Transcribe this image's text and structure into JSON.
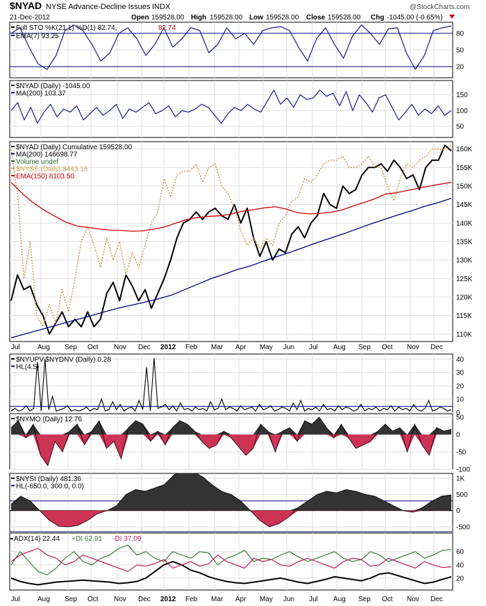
{
  "header": {
    "symbol": "$NYAD",
    "name": "NYSE Advance-Decline Issues",
    "exchange": "INDX",
    "date": "21-Dec-2012",
    "open_label": "Open",
    "open": "159528.00",
    "high_label": "High",
    "high": "159528.00",
    "low_label": "Low",
    "low": "159528.00",
    "close_label": "Close",
    "close": "159528.00",
    "chg_label": "Chg",
    "chg": "-1045.00 (-0.65%)",
    "watermark": "@StockCharts.com",
    "down_color": "#cc0000"
  },
  "xaxis": {
    "labels": [
      "Jul",
      "Aug",
      "Sep",
      "Oct",
      "Nov",
      "Dec",
      "2012",
      "Feb",
      "Mar",
      "Apr",
      "May",
      "Jun",
      "Jul",
      "Aug",
      "Sep",
      "Oct",
      "Nov",
      "Dec"
    ]
  },
  "chart_data": [
    {
      "type": "line",
      "title": "Full STO %K(21,1) %D(1) 82.74, 82.74",
      "legend": [
        {
          "label": "Full STO %K(21,1) %D(1) 82.74,",
          "color": "#000000"
        },
        {
          "label": "82.74",
          "color": "#cc0000"
        },
        {
          "label": "EMA(7) 93.25",
          "color": "#000080"
        }
      ],
      "yticks": [
        20,
        50,
        80
      ],
      "ylim": [
        0,
        100
      ],
      "reference_lines": [
        20,
        80
      ],
      "series": [
        {
          "name": "EMA(7) 93.25",
          "color": "#1a1a8c",
          "values": [
            80,
            90,
            55,
            25,
            15,
            40,
            85,
            95,
            85,
            60,
            30,
            45,
            80,
            90,
            70,
            40,
            60,
            90,
            55,
            70,
            90,
            85,
            45,
            60,
            90,
            70,
            80,
            60,
            85,
            90,
            92,
            85,
            55,
            30,
            70,
            90,
            60,
            35,
            75,
            95,
            80,
            60,
            88,
            90,
            45,
            15,
            40,
            85,
            90,
            93
          ]
        }
      ]
    },
    {
      "type": "line",
      "title": "$NYAD (Daily) -1045.00",
      "legend": [
        {
          "label": "$NYAD (Daily) -1045.00",
          "color": "#000000"
        },
        {
          "label": "MA(200) 103.37",
          "color": "#000080"
        }
      ],
      "yticks": [
        50,
        100,
        150
      ],
      "ylim": [
        15,
        195
      ],
      "series": [
        {
          "name": "$NYAD (Daily) -1045.00",
          "color": "#1a1a8c",
          "values": [
            100,
            125,
            70,
            110,
            60,
            95,
            120,
            80,
            105,
            95,
            115,
            70,
            90,
            110,
            85,
            100,
            120,
            75,
            105,
            95,
            110,
            125,
            90,
            100,
            115,
            80,
            100,
            95,
            105,
            120,
            110,
            85,
            60,
            90,
            110,
            100,
            120,
            105,
            95,
            130,
            165,
            120,
            140,
            110,
            150,
            135,
            140,
            165,
            145,
            155,
            115,
            160,
            100,
            150,
            125,
            95,
            140,
            150,
            110,
            70,
            95,
            120,
            85,
            105,
            90,
            115,
            85,
            100
          ]
        }
      ]
    },
    {
      "type": "line",
      "title": "$NYAD (Daily) Cumulative 159528.00",
      "legend": [
        {
          "label": "$NYAD (Daily) Cumulative 159528.00",
          "color": "#000000"
        },
        {
          "label": "MA(200) 146698.77",
          "color": "#000080"
        },
        {
          "label": "Volume undef",
          "color": "#2e6b2e"
        },
        {
          "label": "$NYSE (Daily) 8443.16",
          "color": "#c8a050"
        },
        {
          "label": "EMA(150) 8103.50",
          "color": "#cc0000"
        }
      ],
      "yticks": [
        110000,
        115000,
        120000,
        125000,
        130000,
        135000,
        140000,
        145000,
        150000,
        155000,
        160000
      ],
      "ylim": [
        108000,
        162000
      ],
      "series": [
        {
          "name": "$NYAD (Daily) Cumulative 159528.00",
          "color": "#000000",
          "width": 2,
          "values": [
            119000,
            126000,
            122000,
            123000,
            118000,
            115000,
            110000,
            113000,
            116000,
            112000,
            114000,
            112000,
            116000,
            112000,
            114000,
            121000,
            124000,
            119000,
            126000,
            123000,
            119000,
            122000,
            117000,
            121000,
            125000,
            130000,
            136000,
            140000,
            141000,
            143000,
            141000,
            143000,
            144000,
            142000,
            141000,
            145000,
            140000,
            144000,
            136000,
            131000,
            135000,
            130000,
            133000,
            132000,
            137000,
            139000,
            136000,
            140000,
            142000,
            148000,
            145000,
            144000,
            150000,
            148000,
            149000,
            153000,
            155000,
            155000,
            156000,
            154000,
            157000,
            155000,
            152000,
            153000,
            149000,
            155000,
            157000,
            157000,
            161000,
            159500
          ]
        },
        {
          "name": "$NYSE (Daily) 8443.16",
          "color": "#c8a050",
          "width": 1.6,
          "dashed": true,
          "values": [
            160000,
            148000,
            125000,
            135000,
            115000,
            112000,
            118000,
            113000,
            122000,
            116000,
            125000,
            135000,
            139000,
            134000,
            128000,
            136000,
            130000,
            135000,
            126000,
            132000,
            128000,
            134000,
            140000,
            143000,
            152000,
            147000,
            153000,
            154000,
            154000,
            156000,
            151000,
            155000,
            156000,
            150000,
            148000,
            144000,
            138000,
            134000,
            136000,
            133000,
            136000,
            134000,
            140000,
            142000,
            146000,
            147000,
            152000,
            151000,
            153000,
            156000,
            157000,
            157000,
            158000,
            155000,
            155000,
            156000,
            158000,
            155000,
            155000,
            150000,
            146000,
            152000,
            156000,
            155000,
            157000,
            158000,
            160000,
            160000,
            160000,
            161000
          ]
        },
        {
          "name": "EMA(150) 8103.50",
          "color": "#cc0000",
          "width": 1.3,
          "values": [
            151000,
            148000,
            145500,
            143500,
            141800,
            140200,
            139200,
            138800,
            138400,
            138100,
            138000,
            137800,
            137900,
            138400,
            139000,
            140000,
            141000,
            141500,
            141800,
            142000,
            142400,
            143200,
            143600,
            144100,
            144400,
            143800,
            142800,
            142500,
            142600,
            142900,
            143500,
            144500,
            145500,
            146500,
            147800,
            148200,
            148800,
            149400,
            150000,
            150500,
            151000
          ]
        },
        {
          "name": "MA(200) 146698.77",
          "color": "#000080",
          "width": 1.3,
          "values": [
            109000,
            110000,
            111000,
            112000,
            113000,
            114000,
            115000,
            116000,
            117000,
            117800,
            118600,
            119500,
            120500,
            122000,
            123500,
            125000,
            126200,
            127500,
            128500,
            129800,
            131000,
            132200,
            133500,
            134800,
            136000,
            137200,
            138500,
            139800,
            141000,
            142200,
            143300,
            144500,
            145500,
            146700
          ]
        }
      ]
    },
    {
      "type": "bar",
      "title": "$NYUPV:$NYDNV (Daily) 0.28",
      "legend": [
        {
          "label": "$NYUPV:$NYDNV (Daily) 0.28",
          "color": "#000000"
        },
        {
          "label": "HL(4.5)",
          "color": "#000080"
        }
      ],
      "yticks": [
        0,
        10,
        20,
        30,
        40
      ],
      "ylim": [
        0,
        44
      ],
      "reference_lines": [
        4.5
      ],
      "values": [
        1,
        3,
        1,
        2,
        5,
        1,
        3,
        38,
        1,
        40,
        2,
        12,
        1,
        2,
        3,
        5,
        1,
        2,
        1,
        2,
        4,
        1,
        3,
        2,
        10,
        1,
        2,
        8,
        2,
        6,
        1,
        3,
        4,
        1,
        9,
        2,
        34,
        1,
        41,
        3,
        4,
        6,
        2,
        5,
        1,
        7,
        2,
        3,
        1,
        4,
        2,
        3,
        1,
        8,
        2,
        3,
        10,
        2,
        4,
        3,
        1,
        5,
        2,
        3,
        4,
        1,
        6,
        2,
        3,
        5,
        1,
        2,
        4,
        3,
        1,
        7,
        2,
        9,
        1,
        3,
        2,
        4,
        1,
        6,
        2,
        3,
        1,
        5,
        2,
        4,
        3,
        1,
        2,
        6,
        1,
        3,
        2,
        4,
        1,
        3,
        2,
        5,
        1,
        4,
        2,
        3,
        1,
        6,
        2,
        1,
        3,
        9,
        1,
        2,
        4,
        3,
        1,
        2
      ]
    },
    {
      "type": "area",
      "title": "$NYMO (Daily) 12.76",
      "legend": [
        {
          "label": "$NYMO (Daily) 12.76",
          "color": "#000000"
        }
      ],
      "yticks": [
        -100,
        -50,
        0,
        50
      ],
      "ylim": [
        -100,
        60
      ],
      "positive_color": "#333333",
      "negative_color": "#cc3355",
      "values": [
        20,
        40,
        -10,
        30,
        -60,
        -90,
        -20,
        -50,
        10,
        30,
        -30,
        10,
        40,
        -40,
        -20,
        -70,
        20,
        40,
        30,
        -20,
        10,
        -30,
        20,
        40,
        30,
        10,
        -20,
        -40,
        -30,
        10,
        -10,
        -35,
        -60,
        -40,
        30,
        10,
        -50,
        10,
        20,
        -20,
        40,
        30,
        50,
        20,
        -10,
        30,
        -10,
        -40,
        -30,
        -20,
        10,
        30,
        10,
        20,
        -50,
        30,
        -30,
        -60,
        20,
        10,
        15
      ]
    },
    {
      "type": "area",
      "title": "$NYSI (Daily) 481.36",
      "legend": [
        {
          "label": "$NYSI (Daily) 481.36",
          "color": "#000000"
        },
        {
          "label": "HL(-650.0, 300.0, 0.0)",
          "color": "#000080"
        }
      ],
      "yticks": [
        -500,
        0,
        500,
        1000
      ],
      "ylim": [
        -650,
        1150
      ],
      "reference_lines": [
        -650,
        300,
        0
      ],
      "positive_color": "#333333",
      "negative_color": "#cc3355",
      "values": [
        200,
        450,
        300,
        0,
        -300,
        -480,
        -500,
        -450,
        -300,
        -100,
        0,
        150,
        500,
        650,
        600,
        700,
        800,
        1100,
        1250,
        1200,
        1050,
        800,
        600,
        500,
        300,
        0,
        -300,
        -500,
        -400,
        -200,
        100,
        300,
        500,
        600,
        550,
        650,
        600,
        500,
        450,
        300,
        150,
        0,
        -50,
        100,
        300,
        450,
        481
      ]
    },
    {
      "type": "line",
      "title": "ADX(14) 22.44 +DI 62.91 -DI 37.09",
      "legend": [
        {
          "label": "ADX(14) 22.44",
          "color": "#000000"
        },
        {
          "label": "+DI 62.91",
          "color": "#2e7d32"
        },
        {
          "label": "-DI 37.09",
          "color": "#c2185b"
        }
      ],
      "yticks": [
        20,
        40,
        60
      ],
      "ylim": [
        2,
        88
      ],
      "series": [
        {
          "name": "ADX(14) 22.44",
          "color": "#000000",
          "width": 2,
          "values": [
            20,
            15,
            12,
            10,
            12,
            14,
            15,
            16,
            17,
            16,
            15,
            14,
            12,
            13,
            15,
            20,
            30,
            40,
            45,
            40,
            32,
            28,
            22,
            18,
            15,
            13,
            12,
            14,
            16,
            18,
            20,
            17,
            14,
            12,
            15,
            18,
            22,
            20,
            18,
            16,
            20,
            26,
            28,
            24,
            20,
            16,
            12,
            14,
            18,
            22
          ]
        },
        {
          "name": "+DI 62.91",
          "color": "#2e7d32",
          "width": 1.2,
          "values": [
            40,
            60,
            45,
            30,
            25,
            35,
            50,
            60,
            45,
            40,
            50,
            55,
            65,
            70,
            55,
            60,
            50,
            45,
            60,
            55,
            50,
            60,
            58,
            40,
            50,
            55,
            62,
            45,
            50,
            48,
            55,
            60,
            52,
            45,
            50,
            55,
            60,
            50,
            45,
            48,
            60,
            55,
            45,
            50,
            55,
            60,
            50,
            55,
            62,
            63
          ]
        },
        {
          "name": "-DI 37.09",
          "color": "#c2185b",
          "width": 1.2,
          "values": [
            45,
            55,
            60,
            65,
            55,
            50,
            40,
            45,
            55,
            50,
            45,
            40,
            35,
            30,
            40,
            38,
            42,
            48,
            35,
            40,
            45,
            38,
            42,
            55,
            45,
            40,
            35,
            50,
            45,
            48,
            40,
            38,
            45,
            50,
            45,
            40,
            35,
            45,
            50,
            48,
            38,
            40,
            50,
            45,
            40,
            35,
            45,
            40,
            36,
            37
          ]
        }
      ]
    }
  ]
}
